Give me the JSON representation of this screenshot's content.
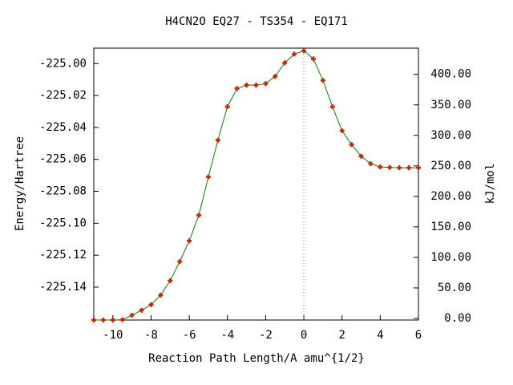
{
  "chart_data": {
    "type": "line",
    "title": "H4CN2O   EQ27 - TS354 - EQ171",
    "xlabel": "Reaction Path Length/A amu^{1/2}",
    "ylabel": "Energy/Hartree",
    "y2label": "kJ/mol",
    "x": [
      -11,
      -10.5,
      -10,
      -9.5,
      -9,
      -8.5,
      -8,
      -7.5,
      -7,
      -6.5,
      -6,
      -5.5,
      -5,
      -4.5,
      -4,
      -3.5,
      -3,
      -2.5,
      -2,
      -1.5,
      -1,
      -0.5,
      0,
      0.5,
      1,
      1.5,
      2,
      2.5,
      3,
      3.5,
      4,
      4.5,
      5,
      5.5,
      6
    ],
    "values": [
      -225.1606,
      -225.1606,
      -225.1606,
      -225.1604,
      -225.1576,
      -225.1545,
      -225.151,
      -225.145,
      -225.136,
      -225.124,
      -225.111,
      -225.095,
      -225.071,
      -225.048,
      -225.027,
      -225.0156,
      -225.0135,
      -225.0135,
      -225.0125,
      -225.008,
      -224.9995,
      -224.994,
      -224.992,
      -224.997,
      -225.0105,
      -225.027,
      -225.042,
      -225.0507,
      -225.058,
      -225.0627,
      -225.0647,
      -225.065,
      -225.0652,
      -225.0652,
      -225.0652
    ],
    "color": "#cc2200",
    "line_color": "#008800",
    "xlim": [
      -11,
      6
    ],
    "xticks": [
      -10,
      -8,
      -6,
      -4,
      -2,
      0,
      2,
      4,
      6
    ],
    "ylim": [
      -225.1606,
      -224.9903
    ],
    "yticks": [
      {
        "value": -225.14,
        "label": "-225.14"
      },
      {
        "value": -225.12,
        "label": "-225.12"
      },
      {
        "value": -225.1,
        "label": "-225.10"
      },
      {
        "value": -225.08,
        "label": "-225.08"
      },
      {
        "value": -225.06,
        "label": "-225.06"
      },
      {
        "value": -225.04,
        "label": "-225.04"
      },
      {
        "value": -225.02,
        "label": "-225.02"
      },
      {
        "value": -225,
        "label": "-225.00"
      }
    ],
    "y2lim": [
      -2.6,
      443
    ],
    "y2ticks": [
      {
        "value": 0,
        "label": "0.00"
      },
      {
        "value": 50,
        "label": "50.00"
      },
      {
        "value": 100,
        "label": "100.00"
      },
      {
        "value": 150,
        "label": "150.00"
      },
      {
        "value": 200,
        "label": "200.00"
      },
      {
        "value": 250,
        "label": "250.00"
      },
      {
        "value": 300,
        "label": "300.00"
      },
      {
        "value": 350,
        "label": "350.00"
      },
      {
        "value": 400,
        "label": "400.00"
      }
    ]
  }
}
